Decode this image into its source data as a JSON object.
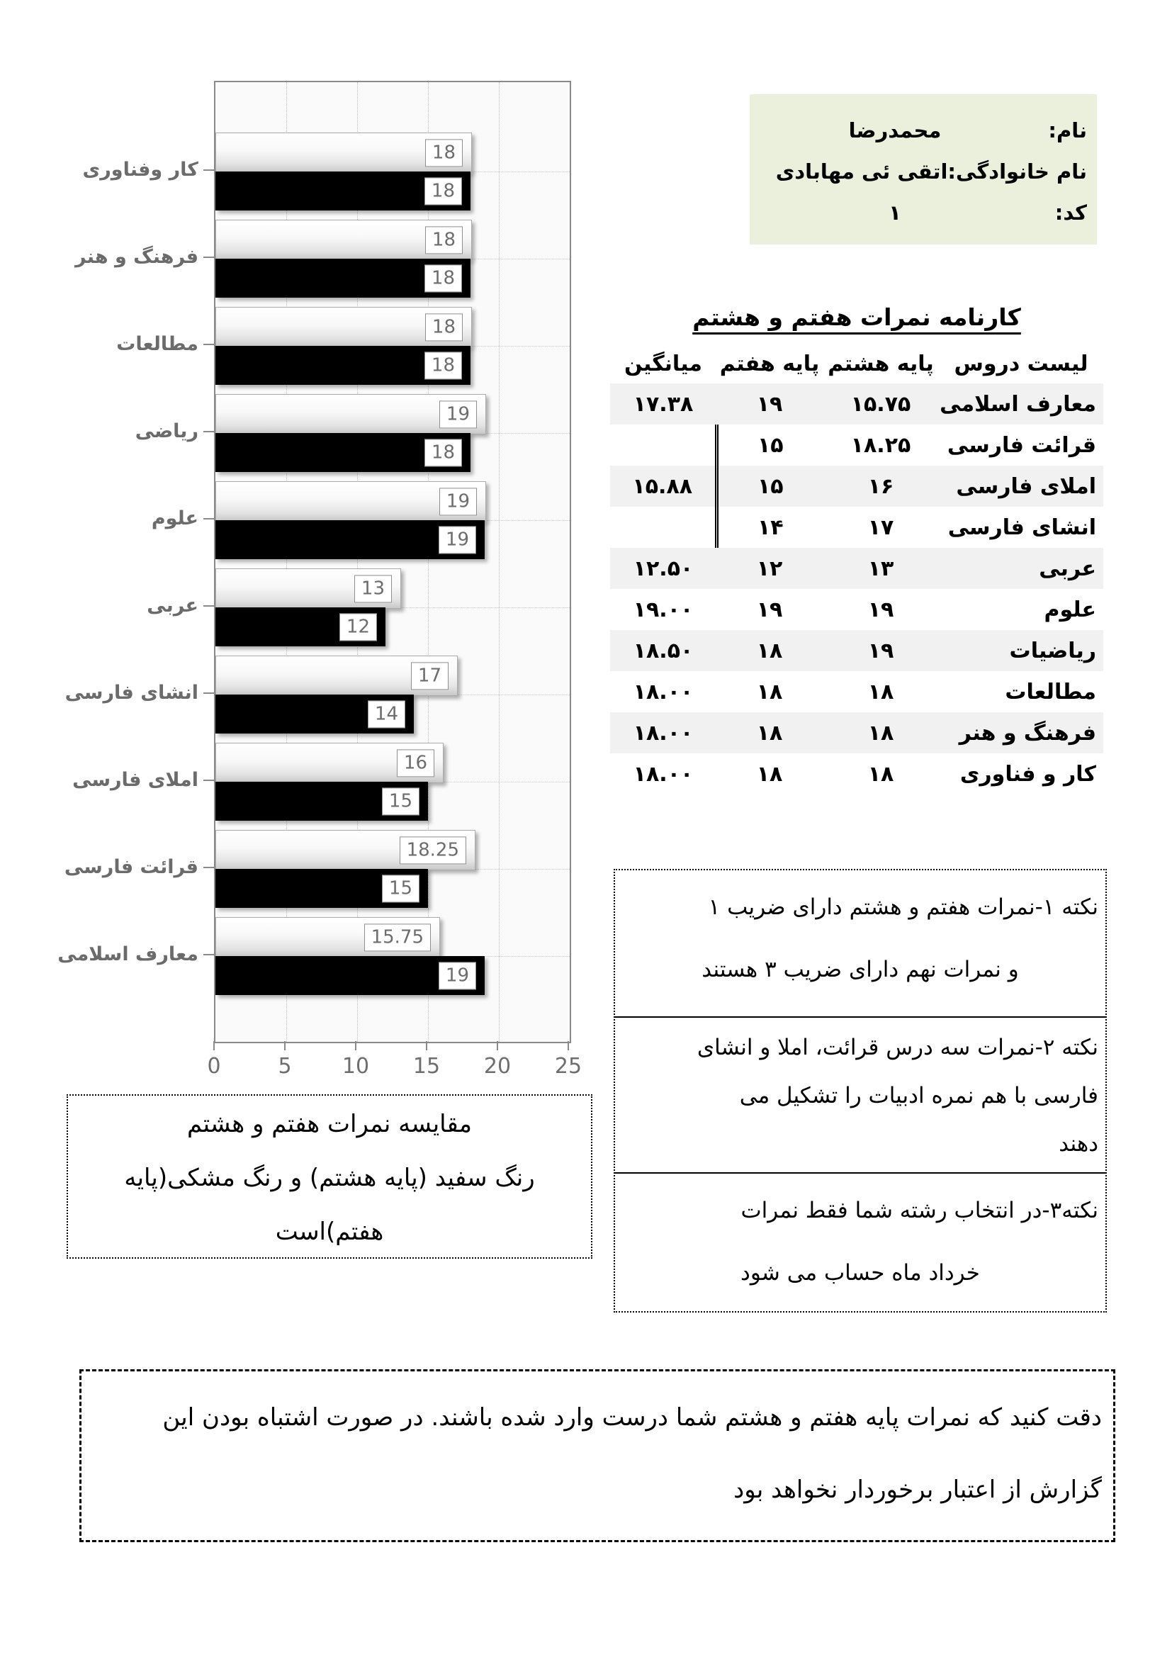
{
  "student": {
    "name_label": "نام:",
    "name_value": "محمدرضا",
    "family_text": "نام خانوادگی:اتقی ئی مهابادی",
    "code_label": "کد:",
    "code_value": "۱"
  },
  "table": {
    "title": "کارنامه نمرات هفتم و هشتم",
    "headers": [
      "لیست دروس",
      "پایه هشتم",
      "پایه هفتم",
      "میانگین"
    ],
    "rows": [
      {
        "subject": "معارف اسلامی",
        "g8": "۱۵.۷۵",
        "g7": "۱۹",
        "avg": "۱۷.۳۸",
        "shaded": true,
        "group": false
      },
      {
        "subject": "قرائت فارسی",
        "g8": "۱۸.۲۵",
        "g7": "۱۵",
        "avg": "",
        "shaded": false,
        "group": true
      },
      {
        "subject": "املای فارسی",
        "g8": "۱۶",
        "g7": "۱۵",
        "avg": "۱۵.۸۸",
        "shaded": true,
        "group": true
      },
      {
        "subject": "انشای فارسی",
        "g8": "۱۷",
        "g7": "۱۴",
        "avg": "",
        "shaded": false,
        "group": true
      },
      {
        "subject": "عربی",
        "g8": "۱۳",
        "g7": "۱۲",
        "avg": "۱۲.۵۰",
        "shaded": true,
        "group": false
      },
      {
        "subject": "علوم",
        "g8": "۱۹",
        "g7": "۱۹",
        "avg": "۱۹.۰۰",
        "shaded": false,
        "group": false
      },
      {
        "subject": "ریاضیات",
        "g8": "۱۹",
        "g7": "۱۸",
        "avg": "۱۸.۵۰",
        "shaded": true,
        "group": false
      },
      {
        "subject": "مطالعات",
        "g8": "۱۸",
        "g7": "۱۸",
        "avg": "۱۸.۰۰",
        "shaded": false,
        "group": false
      },
      {
        "subject": "فرهنگ و هنر",
        "g8": "۱۸",
        "g7": "۱۸",
        "avg": "۱۸.۰۰",
        "shaded": true,
        "group": false
      },
      {
        "subject": "کار و فناوری",
        "g8": "۱۸",
        "g7": "۱۸",
        "avg": "۱۸.۰۰",
        "shaded": false,
        "group": false
      }
    ]
  },
  "chart_data": {
    "type": "bar",
    "orientation": "horizontal",
    "categories": [
      "کار وفناوری",
      "فرهنگ و هنر",
      "مطالعات",
      "ریاضی",
      "علوم",
      "عربی",
      "انشای فارسی",
      "املای فارسی",
      "قرائت فارسی",
      "معارف اسلامی"
    ],
    "series": [
      {
        "name": "پایه هشتم",
        "style": "white",
        "values": [
          18,
          18,
          18,
          19,
          19,
          13,
          17,
          16,
          18.25,
          15.75
        ]
      },
      {
        "name": "پایه هفتم",
        "style": "black",
        "values": [
          18,
          18,
          18,
          18,
          19,
          12,
          14,
          15,
          15,
          19
        ]
      }
    ],
    "xlim": [
      0,
      25
    ],
    "xticks": [
      0,
      5,
      10,
      15,
      20,
      25
    ],
    "grid": "dotted",
    "value_labels": true,
    "legend_position": "none"
  },
  "caption": {
    "lines": [
      "مقایسه نمرات هفتم و هشتم",
      "رنگ سفید (پایه هشتم) و رنگ مشکی(پایه",
      "هفتم)است"
    ]
  },
  "notes": {
    "items": [
      {
        "lines": [
          "نکته ۱-نمرات هفتم و هشتم دارای ضریب ۱",
          "و نمرات نهم دارای ضریب ۳ هستند"
        ],
        "centered": [
          1
        ]
      },
      {
        "lines": [
          "نکته ۲-نمرات سه درس قرائت، املا و انشای",
          "فارسی با هم نمره ادبیات را تشکیل می",
          "دهند"
        ],
        "centered": []
      },
      {
        "lines": [
          "نکته۳-در انتخاب رشته شما فقط نمرات",
          "خرداد ماه حساب می شود"
        ],
        "centered": [
          1
        ]
      }
    ]
  },
  "warning": {
    "lines": [
      "دقت کنید که نمرات پایه هفتم و هشتم شما درست وارد شده باشند. در صورت اشتباه بودن این",
      "گزارش از اعتبار برخوردار نخواهد بود"
    ]
  },
  "colors": {
    "info_box_bg": "#eaf0dc",
    "table_row_shade": "#f1f1f1",
    "plot_bg": "#fafafa",
    "bar_white_border": "#ababab",
    "bar_black": "#000000",
    "gridline": "#bfbfbf",
    "axis_text": "#6e6e6e",
    "category_label": "#6b6b6b"
  }
}
